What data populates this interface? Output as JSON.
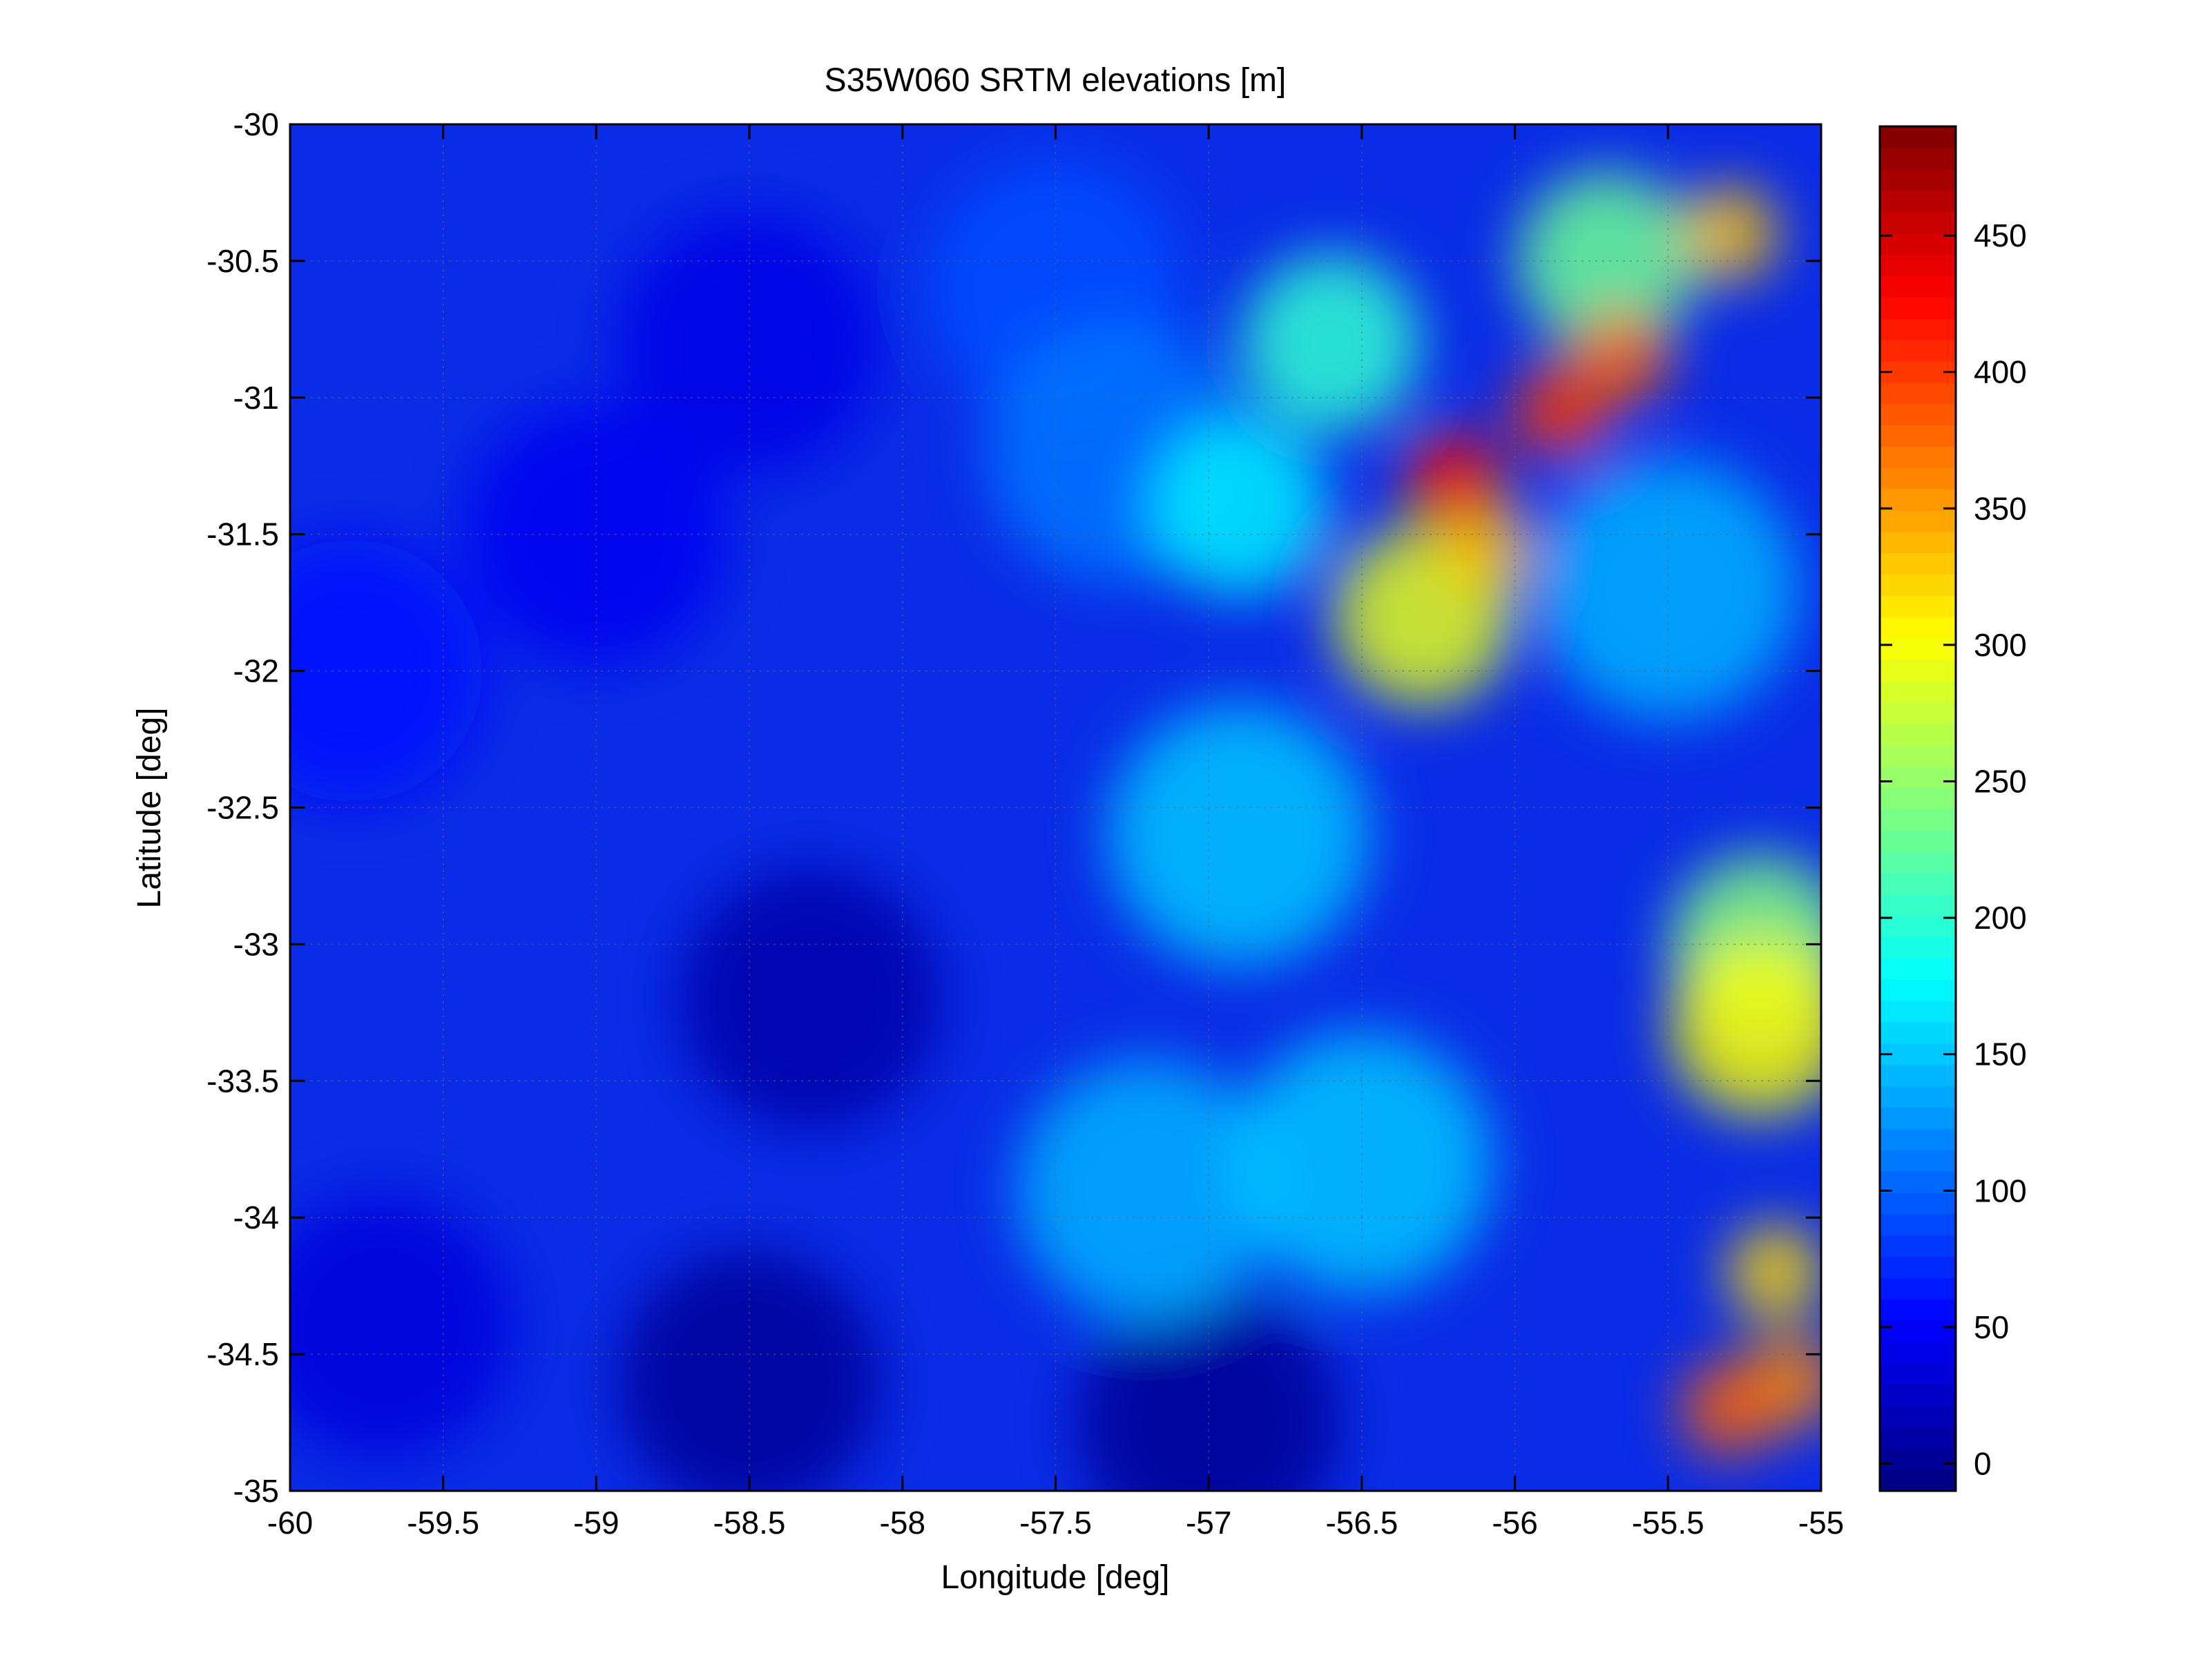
{
  "chart_data": {
    "type": "heatmap",
    "title": "S35W060 SRTM elevations [m]",
    "xlabel": "Longitude [deg]",
    "ylabel": "Latitude [deg]",
    "xlim": [
      -60,
      -55
    ],
    "ylim": [
      -35,
      -30
    ],
    "x_ticks": [
      "-60",
      "-59.5",
      "-59",
      "-58.5",
      "-58",
      "-57.5",
      "-57",
      "-56.5",
      "-56",
      "-55.5",
      "-55"
    ],
    "y_ticks": [
      "-30",
      "-30.5",
      "-31",
      "-31.5",
      "-32",
      "-32.5",
      "-33",
      "-33.5",
      "-34",
      "-34.5",
      "-35"
    ],
    "grid": true,
    "colormap": "jet",
    "colorbar": {
      "range": [
        -10,
        490
      ],
      "ticks": [
        "0",
        "50",
        "100",
        "150",
        "200",
        "250",
        "300",
        "350",
        "400",
        "450"
      ],
      "placement": "right"
    },
    "elevation_features": [
      {
        "lon": -56.2,
        "lat": -31.3,
        "elev": 420
      },
      {
        "lon": -55.85,
        "lat": -31.05,
        "elev": 400
      },
      {
        "lon": -55.65,
        "lat": -30.85,
        "elev": 380
      },
      {
        "lon": -56.1,
        "lat": -31.55,
        "elev": 330
      },
      {
        "lon": -56.3,
        "lat": -31.8,
        "elev": 290
      },
      {
        "lon": -55.3,
        "lat": -30.4,
        "elev": 330
      },
      {
        "lon": -55.7,
        "lat": -30.5,
        "elev": 230
      },
      {
        "lon": -56.6,
        "lat": -30.8,
        "elev": 200
      },
      {
        "lon": -56.9,
        "lat": -31.4,
        "elev": 170
      },
      {
        "lon": -55.2,
        "lat": -33.3,
        "elev": 300
      },
      {
        "lon": -55.15,
        "lat": -34.2,
        "elev": 320
      },
      {
        "lon": -55.1,
        "lat": -34.6,
        "elev": 360
      },
      {
        "lon": -55.3,
        "lat": -34.7,
        "elev": 380
      },
      {
        "lon": -55.2,
        "lat": -33.0,
        "elev": 240
      },
      {
        "lon": -56.5,
        "lat": -33.8,
        "elev": 150
      },
      {
        "lon": -57.2,
        "lat": -33.9,
        "elev": 140
      },
      {
        "lon": -56.9,
        "lat": -32.6,
        "elev": 150
      },
      {
        "lon": -55.5,
        "lat": -31.7,
        "elev": 140
      },
      {
        "lon": -57.3,
        "lat": -31.2,
        "elev": 110
      },
      {
        "lon": -57.5,
        "lat": -30.6,
        "elev": 90
      },
      {
        "lon": -59.8,
        "lat": -32.0,
        "elev": 60
      },
      {
        "lon": -59.0,
        "lat": -31.5,
        "elev": 45
      },
      {
        "lon": -58.5,
        "lat": -30.8,
        "elev": 40
      },
      {
        "lon": -59.7,
        "lat": -34.4,
        "elev": 35
      },
      {
        "lon": -58.3,
        "lat": -33.2,
        "elev": 10
      },
      {
        "lon": -57.0,
        "lat": -34.75,
        "elev": 0
      },
      {
        "lon": -58.5,
        "lat": -34.6,
        "elev": 2
      }
    ]
  }
}
